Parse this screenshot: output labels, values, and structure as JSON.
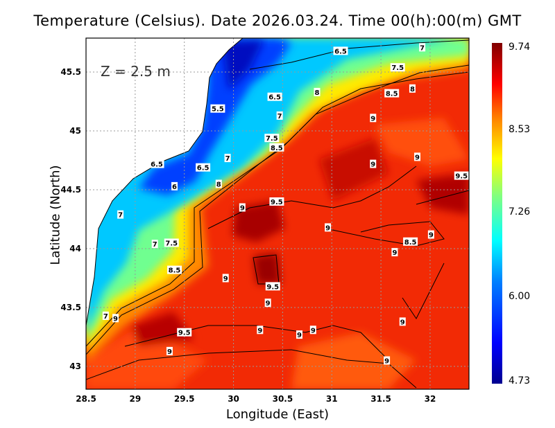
{
  "title": "Temperature (Celsius). Date 2026.03.24. Time 00(h):00(m) GMT",
  "chart_data": {
    "type": "heatmap",
    "title": "Temperature (Celsius). Date 2026.03.24. Time 00(h):00(m) GMT",
    "xlabel": "Longitude (East)",
    "ylabel": "Latitude (North)",
    "annotation": "Z = 2.5 m",
    "xlim": [
      28.5,
      32.4
    ],
    "ylim": [
      42.81,
      45.79
    ],
    "xticks": [
      "28.5",
      "29",
      "29.5",
      "30",
      "30.5",
      "31",
      "31.5",
      "32"
    ],
    "yticks": [
      "43",
      "43.5",
      "44",
      "44.5",
      "45",
      "45.5"
    ],
    "grid": true,
    "colorbar": {
      "min": 4.73,
      "max": 9.74,
      "tick_labels": [
        "9.74",
        "8.53",
        "7.26",
        "6.00",
        "4.73"
      ],
      "colormap": [
        "#00008f",
        "#0000ff",
        "#0080ff",
        "#00ffff",
        "#80ff80",
        "#ffff00",
        "#ff8000",
        "#ff0000",
        "#800000"
      ]
    },
    "contour_labels": [
      {
        "text": "6.5",
        "lon": 31.09,
        "lat": 45.68
      },
      {
        "text": "7",
        "lon": 31.92,
        "lat": 45.71
      },
      {
        "text": "7.5",
        "lon": 31.67,
        "lat": 45.54
      },
      {
        "text": "8.5",
        "lon": 31.61,
        "lat": 45.32
      },
      {
        "text": "8",
        "lon": 31.82,
        "lat": 45.36
      },
      {
        "text": "8",
        "lon": 30.85,
        "lat": 45.33
      },
      {
        "text": "6.5",
        "lon": 30.42,
        "lat": 45.29
      },
      {
        "text": "5.5",
        "lon": 29.84,
        "lat": 45.19
      },
      {
        "text": "7",
        "lon": 30.47,
        "lat": 45.13
      },
      {
        "text": "9",
        "lon": 31.42,
        "lat": 45.11
      },
      {
        "text": "7.5",
        "lon": 30.39,
        "lat": 44.94
      },
      {
        "text": "8.5",
        "lon": 30.44,
        "lat": 44.86
      },
      {
        "text": "7",
        "lon": 29.94,
        "lat": 44.77
      },
      {
        "text": "9",
        "lon": 31.42,
        "lat": 44.72
      },
      {
        "text": "9",
        "lon": 31.87,
        "lat": 44.78
      },
      {
        "text": "6.5",
        "lon": 29.22,
        "lat": 44.72
      },
      {
        "text": "6.5",
        "lon": 29.69,
        "lat": 44.69
      },
      {
        "text": "9.5",
        "lon": 32.32,
        "lat": 44.62
      },
      {
        "text": "6",
        "lon": 29.4,
        "lat": 44.53
      },
      {
        "text": "8",
        "lon": 29.85,
        "lat": 44.55
      },
      {
        "text": "9.5",
        "lon": 30.44,
        "lat": 44.4
      },
      {
        "text": "9",
        "lon": 30.09,
        "lat": 44.35
      },
      {
        "text": "7",
        "lon": 28.85,
        "lat": 44.29
      },
      {
        "text": "9",
        "lon": 30.96,
        "lat": 44.18
      },
      {
        "text": "9",
        "lon": 32.01,
        "lat": 44.12
      },
      {
        "text": "8.5",
        "lon": 31.8,
        "lat": 44.06
      },
      {
        "text": "7",
        "lon": 29.2,
        "lat": 44.04
      },
      {
        "text": "7.5",
        "lon": 29.37,
        "lat": 44.05
      },
      {
        "text": "9",
        "lon": 31.64,
        "lat": 43.97
      },
      {
        "text": "8.5",
        "lon": 29.4,
        "lat": 43.82
      },
      {
        "text": "9",
        "lon": 29.92,
        "lat": 43.75
      },
      {
        "text": "9.5",
        "lon": 30.4,
        "lat": 43.68
      },
      {
        "text": "9",
        "lon": 30.35,
        "lat": 43.54
      },
      {
        "text": "7",
        "lon": 28.7,
        "lat": 43.43
      },
      {
        "text": "9",
        "lon": 28.8,
        "lat": 43.41
      },
      {
        "text": "9",
        "lon": 31.72,
        "lat": 43.38
      },
      {
        "text": "9",
        "lon": 30.27,
        "lat": 43.31
      },
      {
        "text": "9",
        "lon": 30.81,
        "lat": 43.31
      },
      {
        "text": "9",
        "lon": 30.67,
        "lat": 43.27
      },
      {
        "text": "9.5",
        "lon": 29.5,
        "lat": 43.29
      },
      {
        "text": "9",
        "lon": 29.35,
        "lat": 43.13
      },
      {
        "text": "9",
        "lon": 31.56,
        "lat": 43.05
      }
    ]
  }
}
